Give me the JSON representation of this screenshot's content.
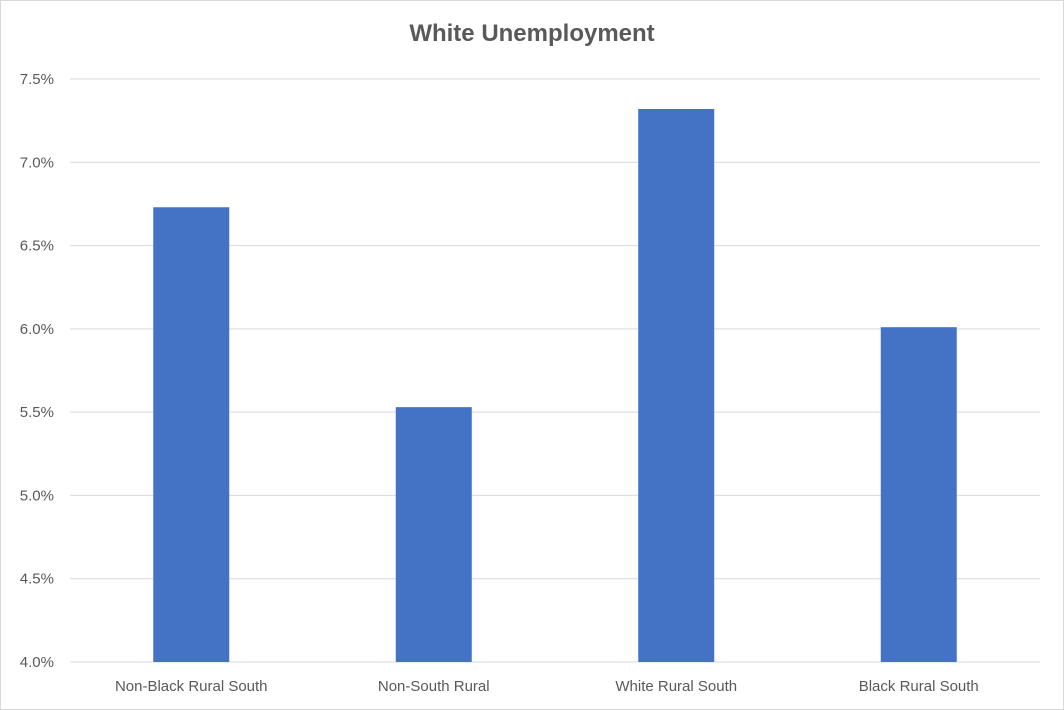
{
  "chart_data": {
    "type": "bar",
    "title": "White Unemployment",
    "xlabel": "",
    "ylabel": "",
    "categories": [
      "Non-Black Rural South",
      "Non-South Rural",
      "White Rural South",
      "Black Rural South"
    ],
    "values": [
      6.73,
      5.53,
      7.32,
      6.01
    ],
    "ylim": [
      4.0,
      7.5
    ],
    "yticks": [
      4.0,
      4.5,
      5.0,
      5.5,
      6.0,
      6.5,
      7.0,
      7.5
    ],
    "ytick_labels": [
      "4.0%",
      "4.5%",
      "5.0%",
      "5.5%",
      "6.0%",
      "6.5%",
      "7.0%",
      "7.5%"
    ],
    "y_unit": "%",
    "grid": true,
    "legend": "none",
    "bar_color": "#4472c4",
    "grid_color": "#d9d9d9",
    "text_color": "#595959"
  }
}
